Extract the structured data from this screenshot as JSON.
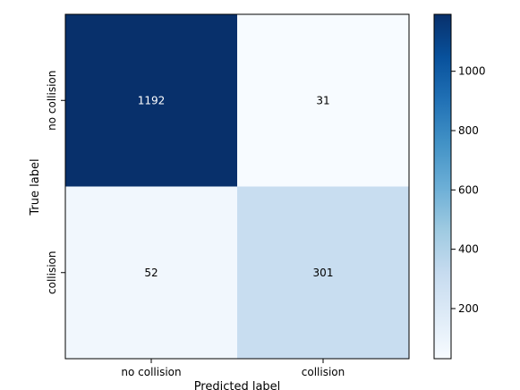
{
  "chart_data": {
    "type": "heatmap",
    "rows": [
      "no collision",
      "collision"
    ],
    "columns": [
      "no collision",
      "collision"
    ],
    "values": [
      [
        1192,
        31
      ],
      [
        52,
        301
      ]
    ],
    "xlabel": "Predicted label",
    "ylabel": "True label",
    "colormap": "Blues",
    "colorbar": {
      "ticks": [
        "200",
        "400",
        "600",
        "800",
        "1000"
      ],
      "tick_values": [
        200,
        400,
        600,
        800,
        1000
      ],
      "range": [
        31,
        1192
      ]
    },
    "colors": {
      "max": "#08306b",
      "min": "#f7fbff",
      "cell_no_collision_no_collision": "#08306b",
      "cell_no_collision_collision": "#f7fbff",
      "cell_collision_no_collision": "#f1f7fd",
      "cell_collision_collision": "#c8ddf0"
    },
    "grid": false
  }
}
